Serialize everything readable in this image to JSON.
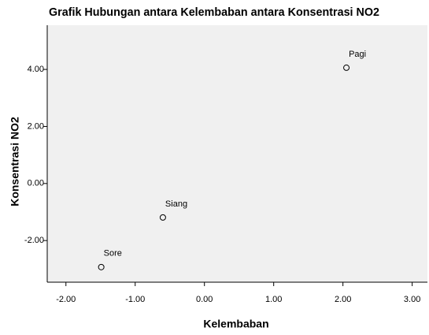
{
  "chart_data": {
    "type": "scatter",
    "title": "Grafik Hubungan antara Kelembaban antara Konsentrasi NO2",
    "x_label": "Kelembaban",
    "y_label": "Konsentrasi NO2",
    "series": [
      {
        "name": null,
        "color": "#000000",
        "x": [
          2.05,
          -0.6,
          -1.49
        ],
        "values": [
          4.06,
          -1.19,
          -2.93
        ],
        "labels": [
          "Pagi",
          "Siang",
          "Sore"
        ]
      }
    ],
    "xlim": [
      -2.27,
      3.22
    ],
    "xticks": [
      {
        "value": -2,
        "label": "-2.00"
      },
      {
        "value": -1,
        "label": "-1.00"
      },
      {
        "value": 0,
        "label": "0.00"
      },
      {
        "value": 1,
        "label": "1.00"
      },
      {
        "value": 2,
        "label": "2.00"
      },
      {
        "value": 3,
        "label": "3.00"
      }
    ],
    "ylim": [
      -3.46,
      5.55
    ],
    "yticks": [
      {
        "value": -2,
        "label": "-2.00"
      },
      {
        "value": 0,
        "label": "0.00"
      },
      {
        "value": 2,
        "label": "2.00"
      },
      {
        "value": 4,
        "label": "4.00"
      }
    ],
    "background": "#f0f0f0"
  }
}
